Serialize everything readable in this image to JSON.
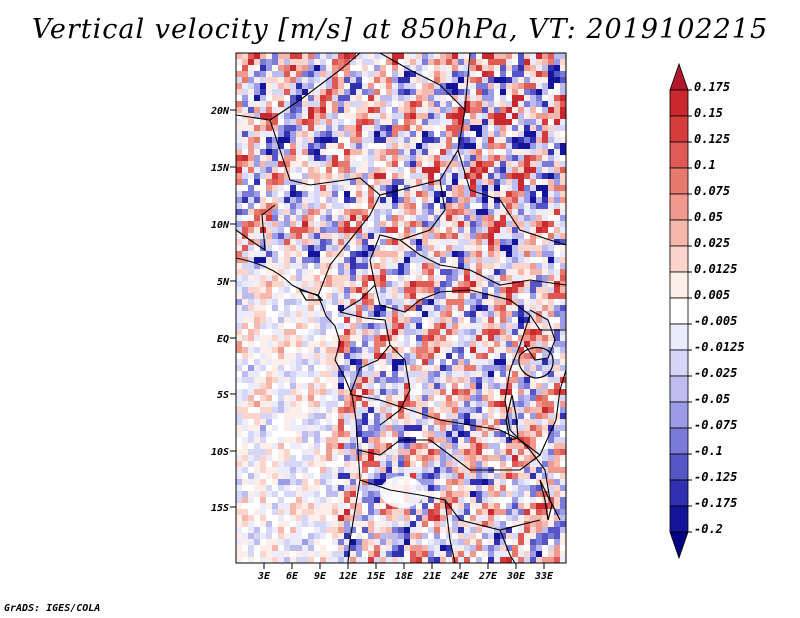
{
  "title": "Vertical velocity [m/s] at 850hPa, VT: 2019102215",
  "credit": "GrADS: IGES/COLA",
  "map": {
    "lat_labels": [
      "20N",
      "15N",
      "10N",
      "5N",
      "EQ",
      "5S",
      "10S",
      "15S"
    ],
    "lon_labels": [
      "3E",
      "6E",
      "9E",
      "12E",
      "15E",
      "18E",
      "21E",
      "24E",
      "27E",
      "30E",
      "33E"
    ]
  },
  "colorbar": {
    "labels": [
      "0.175",
      "0.15",
      "0.125",
      "0.1",
      "0.075",
      "0.05",
      "0.025",
      "0.0125",
      "0.005",
      "-0.005",
      "-0.0125",
      "-0.025",
      "-0.05",
      "-0.075",
      "-0.1",
      "-0.125",
      "-0.175",
      "-0.2"
    ],
    "colors": [
      "#b2182b",
      "#c8282e",
      "#d63c3c",
      "#e05a55",
      "#e8796f",
      "#f0998e",
      "#f6b8ad",
      "#fbd5cc",
      "#fdeee9",
      "#ffffff",
      "#ebebfb",
      "#d6d6f6",
      "#bcbcef",
      "#9c9ce6",
      "#7a7ad8",
      "#5555c6",
      "#3030b0",
      "#14149a",
      "#000080"
    ]
  }
}
